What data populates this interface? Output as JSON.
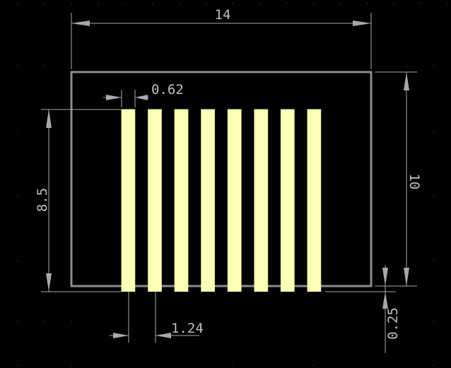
{
  "drawing": {
    "body_outline": {
      "width_mm": 14,
      "height_mm": 10
    },
    "pads": {
      "count": 8,
      "width_mm": 0.62,
      "pitch_mm": 1.24,
      "length_mm": 8.5,
      "protrusion_mm": 0.25
    },
    "colors": {
      "background": "#000000",
      "outline": "#8c8c8c",
      "pad": "#ffffb8",
      "dimension": "#a8a8a8"
    }
  },
  "dimensions": {
    "width_label": "14",
    "height_label": "10",
    "pad_width_label": "0.62",
    "pad_length_label": "8.5",
    "pitch_label": "1.24",
    "protrusion_label": "0.25"
  }
}
